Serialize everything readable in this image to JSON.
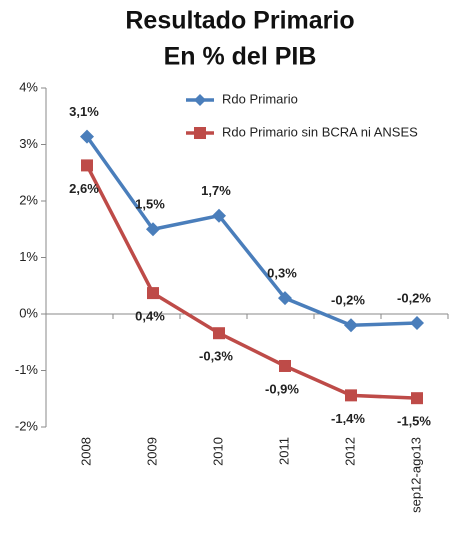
{
  "chart_data": {
    "type": "line",
    "title": "Resultado Primario",
    "subtitle": "En % del PIB",
    "categories": [
      "2008",
      "2009",
      "2010",
      "2011",
      "2012",
      "sep12-ago13"
    ],
    "series": [
      {
        "name": "Rdo Primario",
        "color": "#4a7ebb",
        "marker": "diamond",
        "values": [
          3.14,
          1.5,
          1.74,
          0.28,
          -0.2,
          -0.16
        ],
        "value_labels": [
          "3,1%",
          "1,5%",
          "1,7%",
          "0,3%",
          "-0,2%",
          "-0,2%"
        ]
      },
      {
        "name": "Rdo Primario sin BCRA ni ANSES",
        "color": "#be4b48",
        "marker": "square",
        "values": [
          2.63,
          0.37,
          -0.34,
          -0.92,
          -1.44,
          -1.49
        ],
        "value_labels": [
          "2,6%",
          "0,4%",
          "-0,3%",
          "-0,9%",
          "-1,4%",
          "-1,5%"
        ]
      }
    ],
    "ylim": [
      -2,
      4
    ],
    "yticks": [
      {
        "value": -2,
        "label": "-2%"
      },
      {
        "value": -1,
        "label": "-1%"
      },
      {
        "value": 0,
        "label": "0%"
      },
      {
        "value": 1,
        "label": "1%"
      },
      {
        "value": 2,
        "label": "2%"
      },
      {
        "value": 3,
        "label": "3%"
      },
      {
        "value": 4,
        "label": "4%"
      }
    ],
    "grid": false,
    "legend": "top-right"
  }
}
